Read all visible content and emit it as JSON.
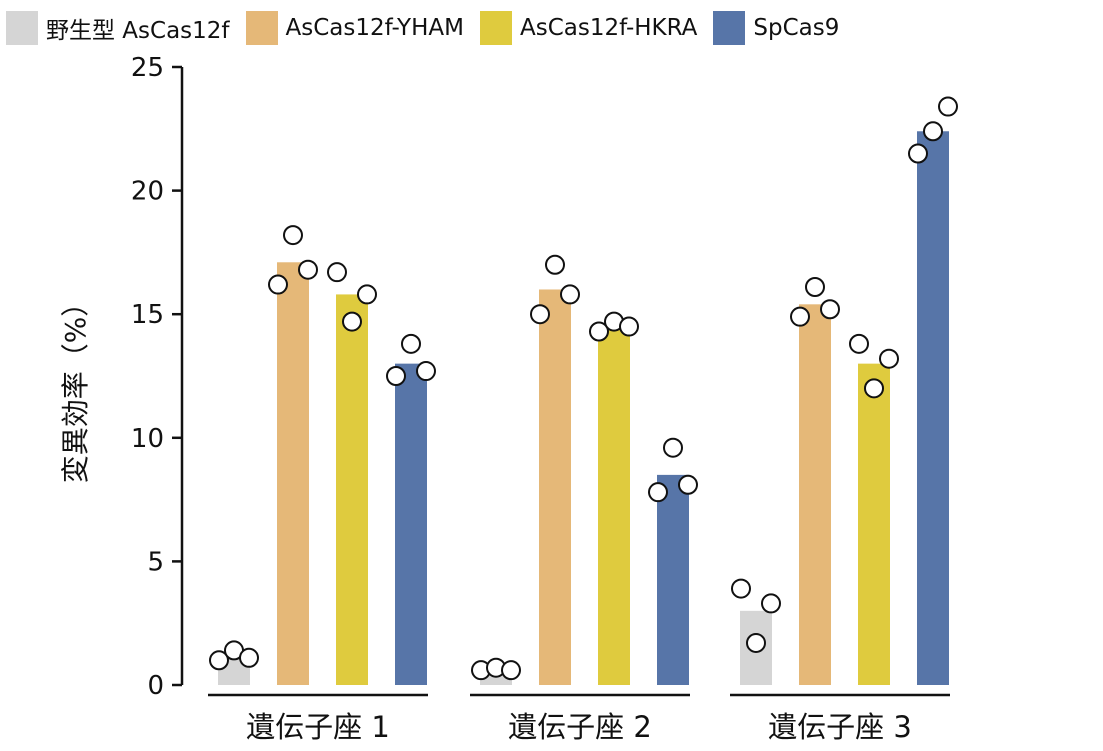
{
  "chart_data": {
    "type": "bar",
    "title": "",
    "xlabel": "",
    "ylabel": "変異効率（%）",
    "ylim": [
      0,
      25
    ],
    "yticks": [
      0,
      5,
      10,
      15,
      20,
      25
    ],
    "grid": false,
    "legend_position": "top",
    "categories": [
      "遺伝子座 1",
      "遺伝子座 2",
      "遺伝子座 3"
    ],
    "series": [
      {
        "name": "野生型 AsCas12f",
        "color": "#d5d5d5",
        "values": [
          1.3,
          0.6,
          3.0
        ],
        "points": [
          [
            1.0,
            1.4,
            1.1
          ],
          [
            0.6,
            0.7,
            0.6
          ],
          [
            3.9,
            1.7,
            3.3
          ]
        ]
      },
      {
        "name": "AsCas12f-YHAM",
        "color": "#e5b878",
        "values": [
          17.1,
          16.0,
          15.4
        ],
        "points": [
          [
            16.2,
            18.2,
            16.8
          ],
          [
            15.0,
            17.0,
            15.8
          ],
          [
            14.9,
            16.1,
            15.2
          ]
        ]
      },
      {
        "name": "AsCas12f-HKRA",
        "color": "#dfcb3e",
        "values": [
          15.8,
          14.6,
          13.0
        ],
        "points": [
          [
            16.7,
            14.7,
            15.8
          ],
          [
            14.3,
            14.7,
            14.5
          ],
          [
            13.8,
            12.0,
            13.2
          ]
        ]
      },
      {
        "name": "SpCas9",
        "color": "#5775a8",
        "values": [
          13.0,
          8.5,
          22.4
        ],
        "points": [
          [
            12.5,
            13.8,
            12.7
          ],
          [
            7.8,
            9.6,
            8.1
          ],
          [
            21.5,
            22.4,
            23.4
          ]
        ]
      }
    ]
  }
}
